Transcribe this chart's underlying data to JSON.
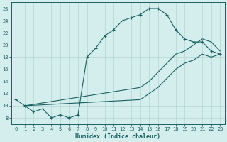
{
  "xlabel": "Humidex (Indice chaleur)",
  "ylabel": "",
  "background_color": "#d4eeee",
  "grid_color": "#b8d8d8",
  "line_color": "#1a6060",
  "xlim": [
    -0.5,
    23.5
  ],
  "ylim": [
    7,
    27
  ],
  "xticks": [
    0,
    1,
    2,
    3,
    4,
    5,
    6,
    7,
    8,
    9,
    10,
    11,
    12,
    13,
    14,
    15,
    16,
    17,
    18,
    19,
    20,
    21,
    22,
    23
  ],
  "yticks": [
    8,
    10,
    12,
    14,
    16,
    18,
    20,
    22,
    24,
    26
  ],
  "line1_x": [
    0,
    1,
    2,
    3,
    4,
    5,
    6,
    7,
    8,
    9,
    10,
    11,
    12,
    13,
    14,
    15,
    16,
    17,
    18,
    19,
    20,
    21,
    22,
    23
  ],
  "line1_y": [
    11,
    10,
    9,
    9.5,
    8,
    8.5,
    8,
    8.5,
    18,
    19.5,
    21.5,
    22.5,
    24,
    24.5,
    25,
    26,
    26,
    25,
    22.5,
    21,
    20.5,
    20.5,
    19,
    18.5
  ],
  "line2_x": [
    1,
    14,
    15,
    16,
    17,
    18,
    19,
    20,
    21,
    22,
    23
  ],
  "line2_y": [
    10,
    13,
    14,
    15.5,
    17,
    18.5,
    19,
    20,
    21,
    20.5,
    19
  ],
  "line3_x": [
    1,
    14,
    15,
    16,
    17,
    18,
    19,
    20,
    21,
    22,
    23
  ],
  "line3_y": [
    10,
    11,
    12,
    13,
    14.5,
    16,
    17,
    17.5,
    18.5,
    18,
    18.5
  ],
  "figsize": [
    3.2,
    2.0
  ],
  "dpi": 100
}
